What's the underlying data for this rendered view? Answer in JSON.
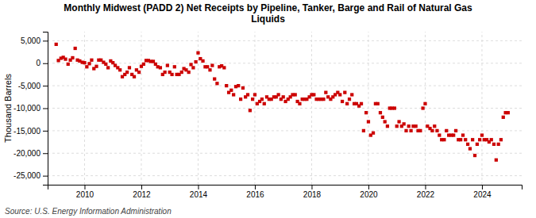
{
  "chart_data": {
    "type": "scatter",
    "title": "Monthly Midwest (PADD 2) Net Receipts by Pipeline, Tanker, Barge and Rail of Natural Gas\nLiquids",
    "y_label": "Thousand Barrels",
    "source": "Source: U.S. Energy Information Administration",
    "color": "#cc0000",
    "marker": "square",
    "grid": true,
    "xlim": [
      2008.7,
      2025.4
    ],
    "xticks": [
      2010,
      2012,
      2014,
      2016,
      2018,
      2020,
      2022,
      2024
    ],
    "ylim": [
      -27000,
      7000
    ],
    "yticks": [
      {
        "value": 5000,
        "label": "5,000"
      },
      0,
      {
        "value": -5000,
        "label": "-5,000"
      },
      {
        "value": -10000,
        "label": "-10,000"
      },
      {
        "value": -15000,
        "label": "-15,000"
      },
      {
        "value": -20000,
        "label": "-20,000"
      },
      {
        "value": -25000,
        "label": "-25,000"
      }
    ],
    "x": [
      2009.0,
      2009.08,
      2009.17,
      2009.25,
      2009.33,
      2009.42,
      2009.5,
      2009.58,
      2009.67,
      2009.75,
      2009.83,
      2009.92,
      2010.0,
      2010.08,
      2010.17,
      2010.25,
      2010.33,
      2010.42,
      2010.5,
      2010.58,
      2010.67,
      2010.75,
      2010.83,
      2010.92,
      2011.0,
      2011.08,
      2011.17,
      2011.25,
      2011.33,
      2011.42,
      2011.5,
      2011.58,
      2011.67,
      2011.75,
      2011.83,
      2011.92,
      2012.0,
      2012.08,
      2012.17,
      2012.25,
      2012.33,
      2012.42,
      2012.5,
      2012.58,
      2012.67,
      2012.75,
      2012.83,
      2012.92,
      2013.0,
      2013.08,
      2013.17,
      2013.25,
      2013.33,
      2013.42,
      2013.5,
      2013.58,
      2013.67,
      2013.75,
      2013.83,
      2013.92,
      2014.0,
      2014.08,
      2014.17,
      2014.25,
      2014.33,
      2014.42,
      2014.5,
      2014.58,
      2014.67,
      2014.75,
      2014.83,
      2014.92,
      2015.0,
      2015.08,
      2015.17,
      2015.25,
      2015.33,
      2015.42,
      2015.5,
      2015.58,
      2015.67,
      2015.75,
      2015.83,
      2015.92,
      2016.0,
      2016.08,
      2016.17,
      2016.25,
      2016.33,
      2016.42,
      2016.5,
      2016.58,
      2016.67,
      2016.75,
      2016.83,
      2016.92,
      2017.0,
      2017.08,
      2017.17,
      2017.25,
      2017.33,
      2017.42,
      2017.5,
      2017.58,
      2017.67,
      2017.75,
      2017.83,
      2017.92,
      2018.0,
      2018.08,
      2018.17,
      2018.25,
      2018.33,
      2018.42,
      2018.5,
      2018.58,
      2018.67,
      2018.75,
      2018.83,
      2018.92,
      2019.0,
      2019.08,
      2019.17,
      2019.25,
      2019.33,
      2019.42,
      2019.5,
      2019.58,
      2019.67,
      2019.75,
      2019.83,
      2019.92,
      2020.0,
      2020.08,
      2020.17,
      2020.25,
      2020.33,
      2020.42,
      2020.5,
      2020.58,
      2020.67,
      2020.75,
      2020.83,
      2020.92,
      2021.0,
      2021.08,
      2021.17,
      2021.25,
      2021.33,
      2021.42,
      2021.5,
      2021.58,
      2021.67,
      2021.75,
      2021.83,
      2021.92,
      2022.0,
      2022.08,
      2022.17,
      2022.25,
      2022.33,
      2022.42,
      2022.5,
      2022.58,
      2022.67,
      2022.75,
      2022.83,
      2022.92,
      2023.0,
      2023.08,
      2023.17,
      2023.25,
      2023.33,
      2023.42,
      2023.5,
      2023.58,
      2023.67,
      2023.75,
      2023.83,
      2023.92,
      2024.0,
      2024.08,
      2024.17,
      2024.25,
      2024.33,
      2024.42,
      2024.5,
      2024.58,
      2024.67,
      2024.75,
      2024.83,
      2024.92
    ],
    "values": [
      4200,
      600,
      1100,
      1300,
      900,
      -200,
      700,
      1200,
      3300,
      700,
      500,
      200,
      100,
      -800,
      -100,
      700,
      -1200,
      -700,
      700,
      700,
      200,
      -200,
      -1000,
      500,
      100,
      -500,
      -1000,
      -1500,
      -3000,
      -2500,
      -2000,
      -1000,
      -2500,
      -3000,
      -1500,
      -2000,
      -700,
      -200,
      600,
      600,
      400,
      400,
      -200,
      -800,
      -1000,
      -2500,
      -2000,
      -500,
      -2000,
      -2500,
      -800,
      -2500,
      -2500,
      -2000,
      -1200,
      -1500,
      -2000,
      -300,
      -1000,
      300,
      2300,
      1000,
      500,
      -800,
      -800,
      -1500,
      -500,
      -3500,
      -4500,
      -800,
      -600,
      -1000,
      -5000,
      -6500,
      -6000,
      -7000,
      -5200,
      -5000,
      -8000,
      -5500,
      -7500,
      -7000,
      -10500,
      -8000,
      -7000,
      -9000,
      -8500,
      -8000,
      -9000,
      -7500,
      -8000,
      -8000,
      -7500,
      -7500,
      -7000,
      -8000,
      -7500,
      -8500,
      -8000,
      -7500,
      -7000,
      -7000,
      -8500,
      -9000,
      -8000,
      -8000,
      -8000,
      -7500,
      -7000,
      -7000,
      -8000,
      -8000,
      -8000,
      -8000,
      -6500,
      -7500,
      -8000,
      -7500,
      -7000,
      -6500,
      -7000,
      -8500,
      -6500,
      -9000,
      -8000,
      -7000,
      -9000,
      -9000,
      -9500,
      -9000,
      -15000,
      -11000,
      -13000,
      -16000,
      -15500,
      -9000,
      -9000,
      -11000,
      -12000,
      -13000,
      -14000,
      -10000,
      -10000,
      -10000,
      -14000,
      -13000,
      -14000,
      -13500,
      -15000,
      -14000,
      -15000,
      -14000,
      -14000,
      -15000,
      -15000,
      -10000,
      -9000,
      -14000,
      -14500,
      -15000,
      -14000,
      -15000,
      -16000,
      -17000,
      -17000,
      -15000,
      -16000,
      -16000,
      -16000,
      -15000,
      -17000,
      -17000,
      -16000,
      -17000,
      -18000,
      -19000,
      -17000,
      -20500,
      -18000,
      -17000,
      -16000,
      -17000,
      -17000,
      -17500,
      -17000,
      -18000,
      -21500,
      -18000,
      -17000,
      -12000,
      -11000,
      -11000
    ]
  }
}
